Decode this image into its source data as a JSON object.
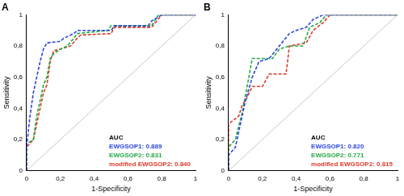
{
  "chart_data": [
    {
      "type": "line",
      "title": "A",
      "x_label": "1-Specificity",
      "y_label": "Sensitivity",
      "xlim": [
        0,
        1
      ],
      "ylim": [
        0,
        1
      ],
      "xticks": [
        0,
        {
          "value": 0.2,
          "label": "0,2"
        },
        {
          "value": 0.4,
          "label": "0,4"
        },
        {
          "value": 0.6,
          "label": "0,6"
        },
        {
          "value": 0.8,
          "label": "0,8"
        },
        1
      ],
      "yticks": [
        0,
        {
          "value": 0.2,
          "label": "0,2"
        },
        {
          "value": 0.4,
          "label": "0,4"
        },
        {
          "value": 0.6,
          "label": "0,6"
        },
        {
          "value": 0.8,
          "label": "0,8"
        },
        1
      ],
      "grid": false,
      "legend": "bottom-right",
      "legend_title": "AUC",
      "series": [
        {
          "name": "EWGSOP1: 0.889",
          "color": "#2a46e0",
          "line_style": "dashed",
          "x": [
            0,
            0,
            0.02,
            0.04,
            0.06,
            0.08,
            0.1,
            0.12,
            0.2,
            0.22,
            0.28,
            0.3,
            0.5,
            0.52,
            0.72,
            0.74,
            0.8,
            1
          ],
          "values": [
            0,
            0.15,
            0.35,
            0.5,
            0.6,
            0.7,
            0.78,
            0.82,
            0.83,
            0.85,
            0.88,
            0.9,
            0.9,
            0.93,
            0.93,
            0.96,
            1,
            1
          ]
        },
        {
          "name": "EWGSOP2: 0.831",
          "color": "#22aa44",
          "line_style": "dashed",
          "x": [
            0,
            0,
            0.04,
            0.06,
            0.08,
            0.1,
            0.12,
            0.14,
            0.16,
            0.2,
            0.24,
            0.28,
            0.3,
            0.48,
            0.5,
            0.74,
            0.78,
            1
          ],
          "values": [
            0,
            0.17,
            0.2,
            0.35,
            0.45,
            0.55,
            0.6,
            0.72,
            0.75,
            0.78,
            0.8,
            0.85,
            0.88,
            0.9,
            0.93,
            0.93,
            1,
            1
          ]
        },
        {
          "name": "modified EWGSOP2: 0.840",
          "color": "#e03a2a",
          "line_style": "dashed",
          "x": [
            0,
            0,
            0.04,
            0.08,
            0.1,
            0.12,
            0.14,
            0.16,
            0.2,
            0.26,
            0.3,
            0.32,
            0.5,
            0.52,
            0.74,
            0.8,
            1
          ],
          "values": [
            0,
            0.15,
            0.2,
            0.4,
            0.5,
            0.55,
            0.7,
            0.77,
            0.78,
            0.8,
            0.85,
            0.87,
            0.88,
            0.92,
            0.92,
            1,
            1
          ]
        },
        {
          "color": "#c8c8c8",
          "line_style": "solid",
          "x": [
            0,
            1
          ],
          "values": [
            0,
            1
          ]
        }
      ]
    },
    {
      "type": "line",
      "title": "B",
      "x_label": "1-Specificity",
      "y_label": "Sensitivity",
      "xlim": [
        0,
        1
      ],
      "ylim": [
        0,
        1
      ],
      "xticks": [
        0,
        {
          "value": 0.2,
          "label": "0,2"
        },
        {
          "value": 0.4,
          "label": "0,4"
        },
        {
          "value": 0.6,
          "label": "0,6"
        },
        {
          "value": 0.8,
          "label": "0,8"
        },
        1
      ],
      "yticks": [
        0,
        {
          "value": 0.2,
          "label": "0,2"
        },
        {
          "value": 0.4,
          "label": "0,4"
        },
        {
          "value": 0.6,
          "label": "0,6"
        },
        {
          "value": 0.8,
          "label": "0,8"
        },
        1
      ],
      "grid": false,
      "legend": "bottom-right",
      "legend_title": "AUC",
      "series": [
        {
          "name": "EWGSOP1: 0.820",
          "color": "#2a46e0",
          "line_style": "dashed",
          "x": [
            0,
            0,
            0.04,
            0.08,
            0.1,
            0.14,
            0.18,
            0.24,
            0.3,
            0.36,
            0.4,
            0.46,
            0.5,
            0.56,
            1
          ],
          "values": [
            0,
            0.1,
            0.15,
            0.35,
            0.45,
            0.6,
            0.7,
            0.72,
            0.8,
            0.88,
            0.9,
            0.92,
            0.97,
            1,
            1
          ]
        },
        {
          "name": "EWGSOP2: 0.771",
          "color": "#22aa44",
          "line_style": "dashed",
          "x": [
            0,
            0,
            0.04,
            0.08,
            0.12,
            0.14,
            0.26,
            0.3,
            0.36,
            0.44,
            0.48,
            0.54,
            0.58,
            1
          ],
          "values": [
            0,
            0.15,
            0.2,
            0.37,
            0.6,
            0.72,
            0.72,
            0.78,
            0.8,
            0.8,
            0.92,
            0.95,
            1,
            1
          ]
        },
        {
          "name": "modified EWGSOP2: 0.815",
          "color": "#e03a2a",
          "line_style": "dashed",
          "x": [
            0,
            0,
            0.06,
            0.08,
            0.1,
            0.14,
            0.2,
            0.24,
            0.34,
            0.36,
            0.46,
            0.5,
            0.56,
            0.6,
            1
          ],
          "values": [
            0,
            0.3,
            0.35,
            0.42,
            0.45,
            0.54,
            0.54,
            0.62,
            0.62,
            0.8,
            0.82,
            0.9,
            0.95,
            1,
            1
          ]
        },
        {
          "color": "#c8c8c8",
          "line_style": "solid",
          "x": [
            0,
            1
          ],
          "values": [
            0,
            1
          ]
        }
      ]
    }
  ]
}
